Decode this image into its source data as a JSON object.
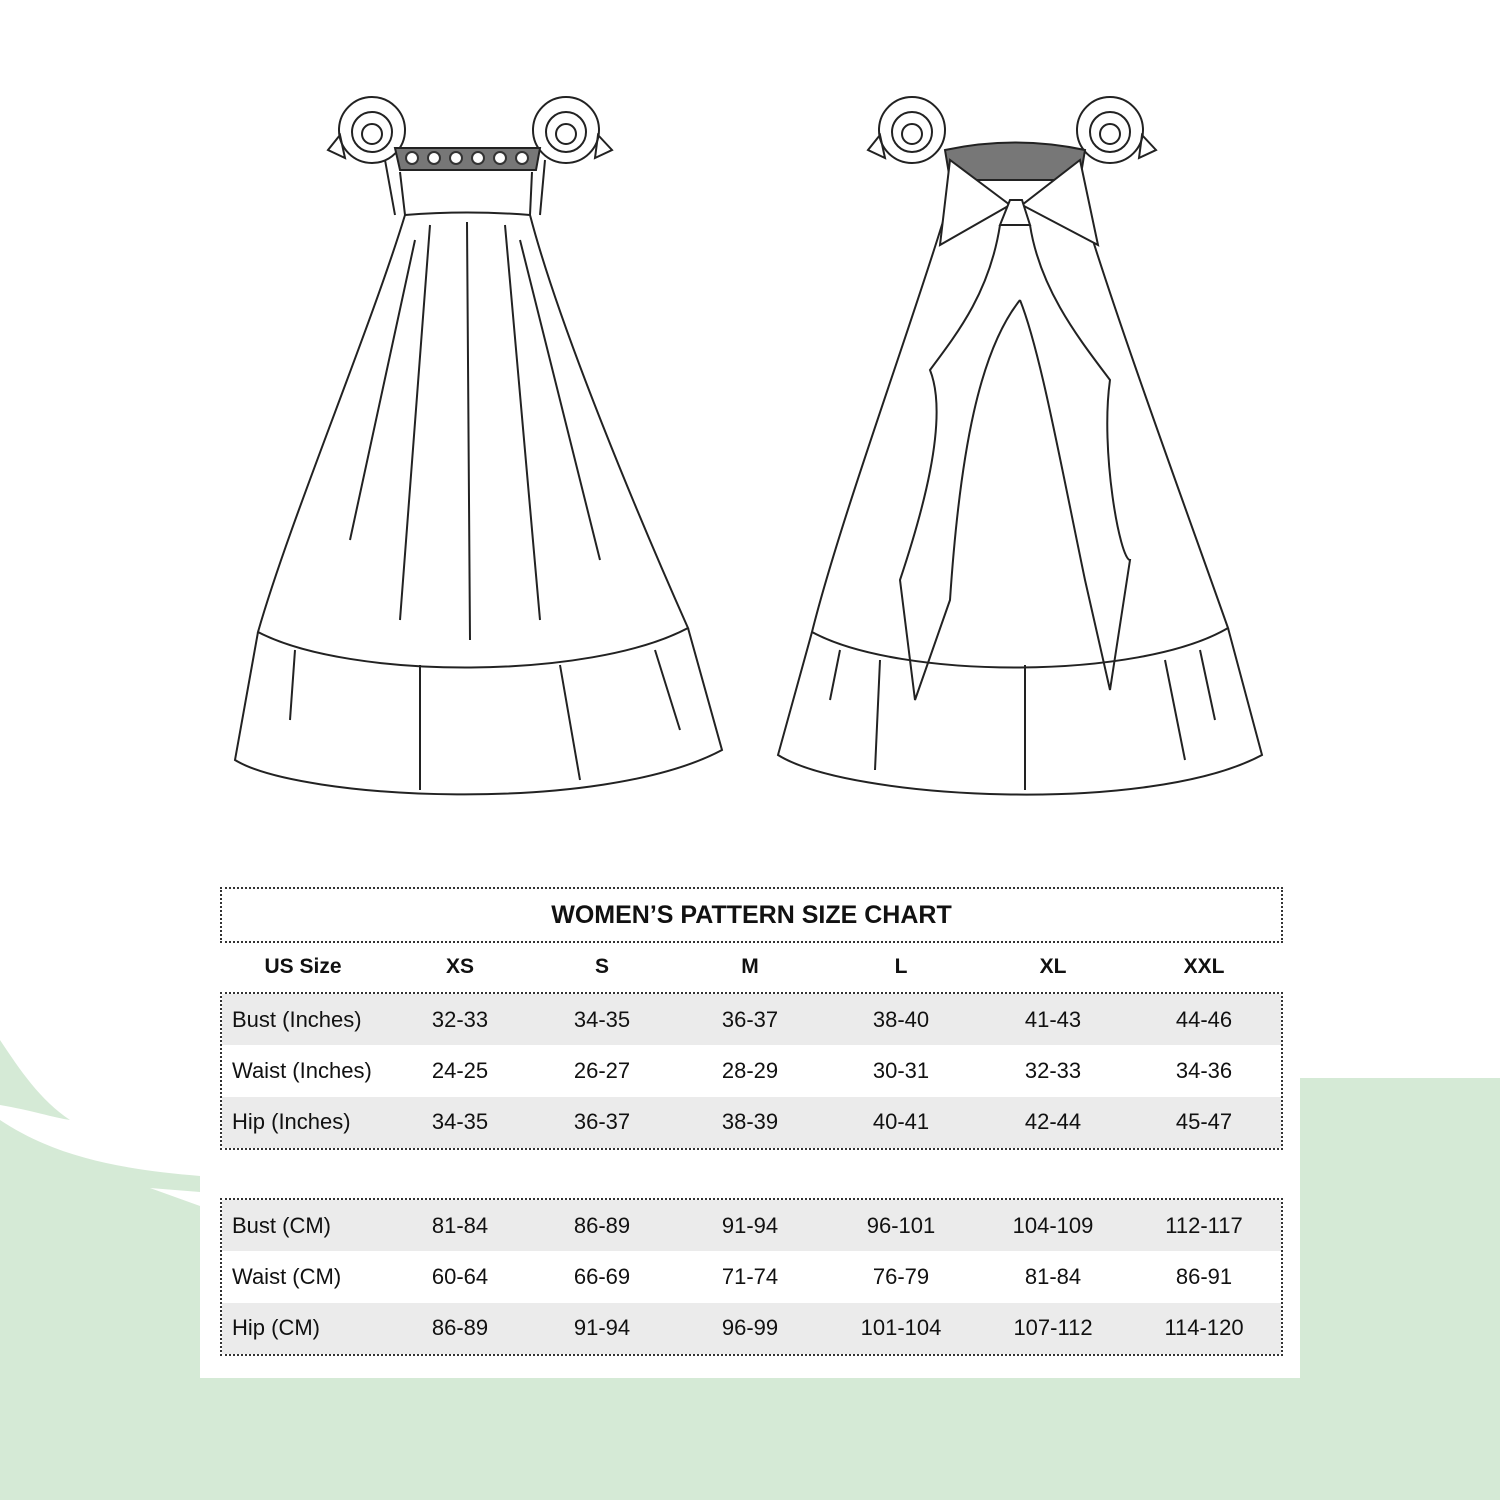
{
  "colors": {
    "background_green": "#d5ead6",
    "row_shade": "#ebebeb",
    "text": "#111111"
  },
  "illustrations": [
    "front-view-dress-flat-sketch",
    "back-view-dress-flat-sketch"
  ],
  "size_chart": {
    "title": "WOMEN’S PATTERN SIZE CHART",
    "header": {
      "label": "US Size",
      "sizes": [
        "XS",
        "S",
        "M",
        "L",
        "XL",
        "XXL"
      ]
    },
    "inches": [
      {
        "label": "Bust (Inches)",
        "values": [
          "32-33",
          "34-35",
          "36-37",
          "38-40",
          "41-43",
          "44-46"
        ]
      },
      {
        "label": "Waist (Inches)",
        "values": [
          "24-25",
          "26-27",
          "28-29",
          "30-31",
          "32-33",
          "34-36"
        ]
      },
      {
        "label": "Hip (Inches)",
        "values": [
          "34-35",
          "36-37",
          "38-39",
          "40-41",
          "42-44",
          "45-47"
        ]
      }
    ],
    "cm": [
      {
        "label": "Bust (CM)",
        "values": [
          "81-84",
          "86-89",
          "91-94",
          "96-101",
          "104-109",
          "112-117"
        ]
      },
      {
        "label": "Waist (CM)",
        "values": [
          "60-64",
          "66-69",
          "71-74",
          "76-79",
          "81-84",
          "86-91"
        ]
      },
      {
        "label": "Hip (CM)",
        "values": [
          "86-89",
          "91-94",
          "96-99",
          "101-104",
          "107-112",
          "114-120"
        ]
      }
    ]
  }
}
